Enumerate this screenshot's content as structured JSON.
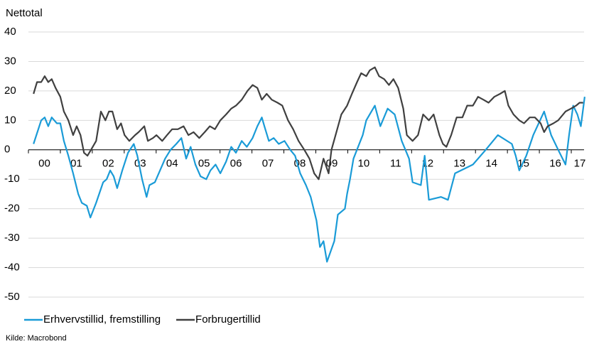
{
  "chart_data": {
    "type": "line",
    "y_label": "Nettotal",
    "source": "Kilde: Macrobond",
    "xlim": [
      2000,
      2017.4
    ],
    "ylim": [
      -50,
      40
    ],
    "yticks": [
      -50,
      -40,
      -30,
      -20,
      -10,
      0,
      10,
      20,
      30,
      40
    ],
    "xticks": [
      {
        "value": 2000,
        "label": "00"
      },
      {
        "value": 2001,
        "label": "01"
      },
      {
        "value": 2002,
        "label": "02"
      },
      {
        "value": 2003,
        "label": "03"
      },
      {
        "value": 2004,
        "label": "04"
      },
      {
        "value": 2005,
        "label": "05"
      },
      {
        "value": 2006,
        "label": "06"
      },
      {
        "value": 2007,
        "label": "07"
      },
      {
        "value": 2008,
        "label": "08"
      },
      {
        "value": 2009,
        "label": "09"
      },
      {
        "value": 2010,
        "label": "10"
      },
      {
        "value": 2011,
        "label": "11"
      },
      {
        "value": 2012,
        "label": "12"
      },
      {
        "value": 2013,
        "label": "13"
      },
      {
        "value": 2014,
        "label": "14"
      },
      {
        "value": 2015,
        "label": "15"
      },
      {
        "value": 2016,
        "label": "16"
      },
      {
        "value": 2017,
        "label": "17"
      }
    ],
    "grid": true,
    "legend": "bottom",
    "series": [
      {
        "name": "Erhvervstillid, fremstilling",
        "color": "#1a9bd7",
        "x": [
          2000.16,
          2000.4,
          2000.51,
          2000.62,
          2000.73,
          2000.89,
          2001.0,
          2001.11,
          2001.25,
          2001.4,
          2001.56,
          2001.67,
          2001.83,
          2001.94,
          2002.12,
          2002.34,
          2002.45,
          2002.56,
          2002.67,
          2002.78,
          2002.94,
          2003.12,
          2003.3,
          2003.41,
          2003.56,
          2003.7,
          2003.79,
          2003.96,
          2004.12,
          2004.28,
          2004.45,
          2004.63,
          2004.79,
          2004.94,
          2005.08,
          2005.23,
          2005.39,
          2005.57,
          2005.7,
          2005.86,
          2006.01,
          2006.19,
          2006.35,
          2006.5,
          2006.68,
          2006.84,
          2007.02,
          2007.17,
          2007.31,
          2007.39,
          2007.53,
          2007.68,
          2007.84,
          2008.02,
          2008.2,
          2008.35,
          2008.51,
          2008.69,
          2008.84,
          2009.02,
          2009.13,
          2009.24,
          2009.35,
          2009.58,
          2009.69,
          2009.91,
          2009.98,
          2010.07,
          2010.18,
          2010.47,
          2010.58,
          2010.85,
          2011.02,
          2011.25,
          2011.47,
          2011.69,
          2011.92,
          2012.03,
          2012.29,
          2012.41,
          2012.54,
          2012.92,
          2013.14,
          2013.36,
          2013.92,
          2014.32,
          2014.7,
          2015.14,
          2015.26,
          2015.37,
          2015.59,
          2015.81,
          2016.15,
          2016.37,
          2016.59,
          2016.82,
          2016.93,
          2017.06,
          2017.19,
          2017.3,
          2017.42
        ],
        "values": [
          2,
          10,
          11,
          8,
          11,
          9,
          9,
          3,
          -2,
          -8,
          -15,
          -18,
          -19,
          -23,
          -18,
          -11,
          -10,
          -7,
          -9,
          -13,
          -7,
          -1,
          2,
          -2,
          -10,
          -16,
          -12,
          -11,
          -7,
          -3,
          0,
          2,
          4,
          -3,
          1,
          -5,
          -9,
          -10,
          -7,
          -5,
          -8,
          -4,
          1,
          -1,
          3,
          1,
          4,
          8,
          11,
          8,
          3,
          4,
          2,
          3,
          0,
          -2,
          -8,
          -12,
          -16,
          -24,
          -33,
          -31,
          -38,
          -31,
          -22,
          -20,
          -15,
          -10,
          -3,
          5,
          10,
          15,
          8,
          14,
          12,
          3,
          -3,
          -11,
          -12,
          -2,
          -17,
          -16,
          -17,
          -8,
          -5,
          0,
          5,
          2,
          -2,
          -7,
          -2,
          5,
          13,
          5,
          0,
          -5,
          5,
          15,
          12,
          8,
          18
        ]
      },
      {
        "name": "Forbrugertillid",
        "color": "#404040",
        "x": [
          2000.16,
          2000.27,
          2000.4,
          2000.51,
          2000.62,
          2000.73,
          2000.85,
          2001.0,
          2001.11,
          2001.25,
          2001.4,
          2001.51,
          2001.63,
          2001.74,
          2001.85,
          2001.96,
          2002.12,
          2002.27,
          2002.41,
          2002.52,
          2002.63,
          2002.78,
          2002.9,
          2003.01,
          2003.16,
          2003.34,
          2003.45,
          2003.63,
          2003.74,
          2003.9,
          2004.01,
          2004.19,
          2004.34,
          2004.5,
          2004.68,
          2004.86,
          2005.01,
          2005.17,
          2005.35,
          2005.52,
          2005.68,
          2005.84,
          2006.01,
          2006.19,
          2006.35,
          2006.5,
          2006.68,
          2006.86,
          2007.02,
          2007.17,
          2007.31,
          2007.46,
          2007.62,
          2007.8,
          2007.95,
          2008.13,
          2008.29,
          2008.46,
          2008.64,
          2008.8,
          2008.95,
          2009.09,
          2009.24,
          2009.4,
          2009.49,
          2009.62,
          2009.8,
          2009.98,
          2010.13,
          2010.29,
          2010.42,
          2010.58,
          2010.69,
          2010.85,
          2010.98,
          2011.14,
          2011.29,
          2011.43,
          2011.58,
          2011.74,
          2011.85,
          2012.03,
          2012.2,
          2012.36,
          2012.54,
          2012.69,
          2012.87,
          2012.98,
          2013.09,
          2013.24,
          2013.41,
          2013.59,
          2013.74,
          2013.92,
          2014.08,
          2014.25,
          2014.41,
          2014.59,
          2014.77,
          2014.92,
          2015.03,
          2015.19,
          2015.37,
          2015.52,
          2015.7,
          2015.86,
          2016.04,
          2016.15,
          2016.26,
          2016.44,
          2016.59,
          2016.82,
          2016.99,
          2017.15,
          2017.26,
          2017.37
        ],
        "values": [
          19,
          23,
          23,
          25,
          23,
          24,
          21,
          18,
          13,
          10,
          5,
          8,
          5,
          -1,
          -2,
          0,
          3,
          13,
          10,
          13,
          13,
          7,
          9,
          5,
          3,
          5,
          6,
          8,
          3,
          4,
          5,
          3,
          5,
          7,
          7,
          8,
          5,
          6,
          4,
          6,
          8,
          7,
          10,
          12,
          14,
          15,
          17,
          20,
          22,
          21,
          17,
          19,
          17,
          16,
          15,
          10,
          7,
          3,
          0,
          -3,
          -8,
          -10,
          -3,
          -8,
          0,
          5,
          12,
          15,
          19,
          23,
          26,
          25,
          27,
          28,
          25,
          24,
          22,
          24,
          21,
          14,
          5,
          3,
          5,
          12,
          10,
          12,
          5,
          2,
          1,
          5,
          11,
          11,
          15,
          15,
          18,
          17,
          16,
          18,
          19,
          20,
          15,
          12,
          10,
          9,
          11,
          11,
          9,
          6,
          8,
          9,
          10,
          13,
          14,
          15,
          16,
          16
        ]
      }
    ]
  }
}
